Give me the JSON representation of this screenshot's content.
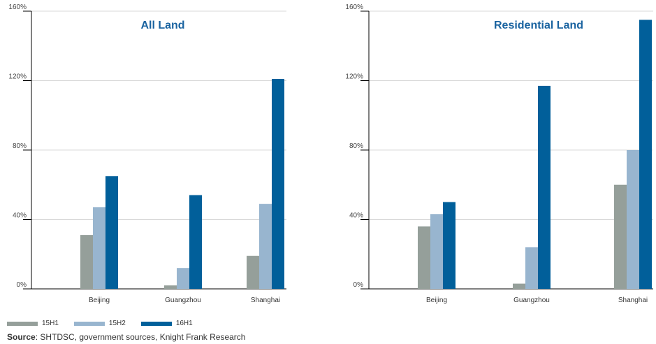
{
  "colors": {
    "15H1": "#959f9a",
    "15H2": "#98b5cf",
    "16H1": "#015f9a",
    "title": "#1a63a0",
    "axis": "#000000",
    "grid": "#d9d9d9"
  },
  "legend": [
    {
      "label": "15H1",
      "color": "#959f9a"
    },
    {
      "label": "15H2",
      "color": "#98b5cf"
    },
    {
      "label": "16H1",
      "color": "#015f9a"
    }
  ],
  "source": {
    "label": "Source",
    "text": ": SHTDSC, government sources, Knight Frank Research"
  },
  "chart_data": [
    {
      "type": "bar",
      "title": "All Land",
      "categories": [
        "Beijing",
        "Guangzhou",
        "Shanghai"
      ],
      "series": [
        {
          "name": "15H1",
          "values": [
            31,
            2,
            19
          ]
        },
        {
          "name": "15H2",
          "values": [
            47,
            12,
            49
          ]
        },
        {
          "name": "16H1",
          "values": [
            65,
            54,
            121
          ]
        }
      ],
      "ylim": [
        0,
        160
      ],
      "yticks": [
        0,
        40,
        80,
        120,
        160
      ],
      "ytick_labels": [
        "0%",
        "40%",
        "80%",
        "120%",
        "160%"
      ],
      "grid": true,
      "legend_position": "bottom-left"
    },
    {
      "type": "bar",
      "title": "Residential Land",
      "categories": [
        "Beijing",
        "Guangzhou",
        "Shanghai"
      ],
      "series": [
        {
          "name": "15H1",
          "values": [
            36,
            3,
            60
          ]
        },
        {
          "name": "15H2",
          "values": [
            43,
            24,
            80
          ]
        },
        {
          "name": "16H1",
          "values": [
            50,
            117,
            155
          ]
        }
      ],
      "ylim": [
        0,
        160
      ],
      "yticks": [
        0,
        40,
        80,
        120,
        160
      ],
      "ytick_labels": [
        "0%",
        "40%",
        "80%",
        "120%",
        "160%"
      ],
      "grid": true,
      "legend_position": "bottom-left"
    }
  ]
}
